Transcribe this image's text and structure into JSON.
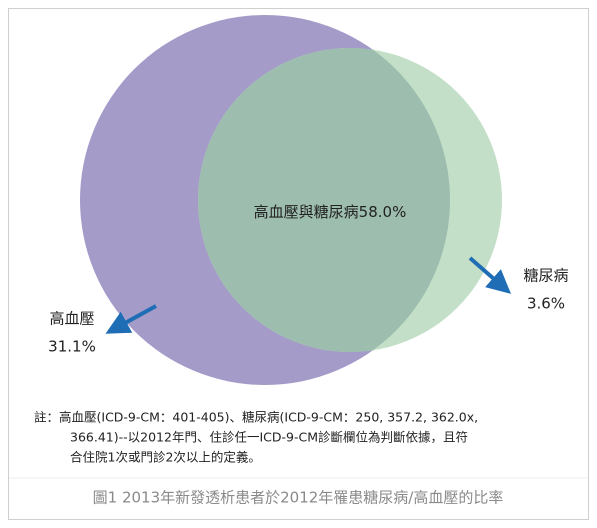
{
  "title": "圖1 2013年新發透析患者於2012年罹患糖尿病/高血壓的比率",
  "regions": [
    {
      "label": "高血壓與糖尿病",
      "value": "58.0%"
    },
    {
      "label": "糖尿病",
      "value": "3.6%"
    },
    {
      "label": "高血壓",
      "value": "31.1%"
    }
  ],
  "note": [
    "註：高血壓(ICD-9-CM：401-405)、糖尿病(ICD-9-CM：250, 357.2, 362.0x,",
    "366.41)--以2012年門、住診任一ICD-9-CM診斷欄位為判斷依據，且符",
    "合住院1次或門診2次以上的定義。"
  ]
}
